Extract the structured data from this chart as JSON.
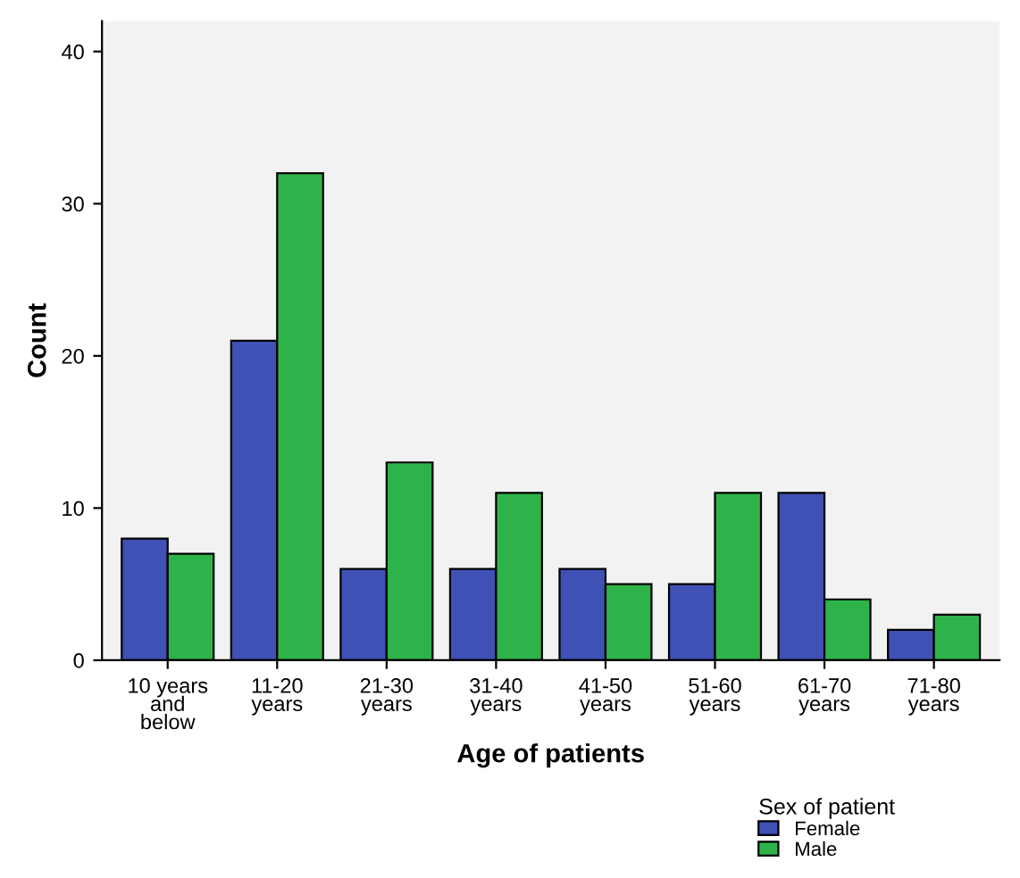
{
  "chart_data": {
    "type": "bar",
    "xlabel": "Age of patients",
    "ylabel": "Count",
    "legend_title": "Sex of patient",
    "categories": [
      "10 years\nand\nbelow",
      "11-20\nyears",
      "21-30\nyears",
      "31-40\nyears",
      "41-50\nyears",
      "51-60\nyears",
      "61-70\nyears",
      "71-80\nyears"
    ],
    "series": [
      {
        "name": "Female",
        "color": "#3f51b5",
        "values": [
          8,
          21,
          6,
          6,
          6,
          5,
          11,
          2
        ]
      },
      {
        "name": "Male",
        "color": "#2db34a",
        "values": [
          7,
          32,
          13,
          11,
          5,
          11,
          4,
          3
        ]
      }
    ],
    "ylim": [
      0,
      42
    ],
    "yticks": [
      0,
      10,
      20,
      30,
      40
    ],
    "grid": false,
    "legend": "bottom right"
  }
}
